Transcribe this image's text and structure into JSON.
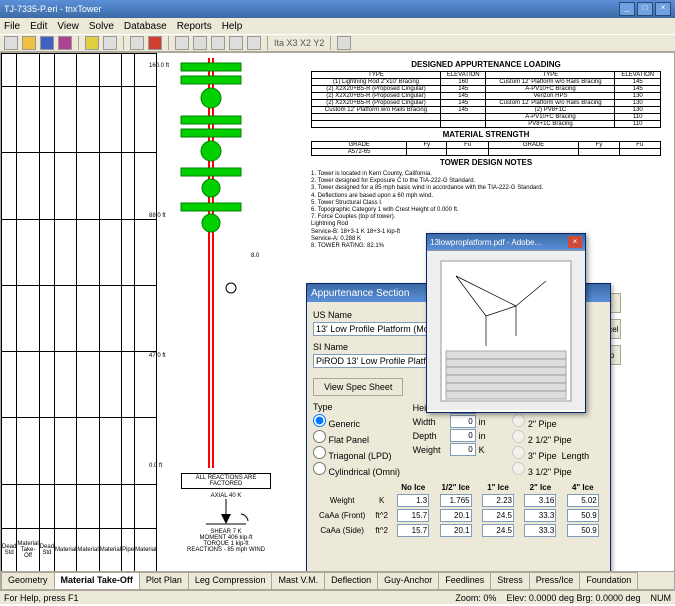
{
  "window": {
    "title": "TJ-7335-P.eri - tnxTower"
  },
  "menu": [
    "File",
    "Edit",
    "View",
    "Solve",
    "Database",
    "Reports",
    "Help"
  ],
  "toolbar_annot": "Ita X3 X2 Y2",
  "drawing_rows": [
    "",
    "",
    "",
    "",
    "",
    "",
    "",
    "",
    "",
    "",
    ""
  ],
  "drawing_footer": [
    "Dead Std",
    "Material Take-Off",
    "Dead Std",
    "Material",
    "Material",
    "Material",
    "Pipe",
    "Material"
  ],
  "dims": {
    "d1": "160.0 ft",
    "d2": "88.0 ft",
    "d3": "47.0 ft",
    "d4": "0.0 ft",
    "rt": "8.0"
  },
  "reactions": {
    "title": "ALL REACTIONS\nARE FACTORED",
    "axial": "AXIAL\n40 K",
    "shear": "SHEAR 7 K",
    "moment": "MOMENT\n406 kip-ft",
    "torque": "TORQUE 1 kip-ft",
    "sub": "REACTIONS - 85 mph WIND"
  },
  "sections": {
    "s1": "DESIGNED APPURTENANCE LOADING",
    "s2": "MATERIAL STRENGTH",
    "s3": "TOWER DESIGN NOTES"
  },
  "appurt_cols": [
    "TYPE",
    "ELEVATION",
    "TYPE",
    "ELEVATION"
  ],
  "appurt_rows": [
    [
      "(1) Lightning Rod 2\"x10' Bracing",
      "160",
      "Custom 12' Platform w/o Rails Bracing",
      "145"
    ],
    [
      "(2) X2X20+B5-R (Proposed Cingular)",
      "145",
      "A-PV10+C Bracing",
      "145"
    ],
    [
      "(2) X2X20+B5-R (Proposed Cingular)",
      "145",
      "Verizon HPS",
      "130"
    ],
    [
      "(2) X2X20+B5-R (Proposed Cingular)",
      "145",
      "Custom 12' Platform w/o Rails Bracing",
      "130"
    ],
    [
      "Custom 12' Platform w/o Rails Bracing",
      "145",
      "(2) PV8+1C",
      "130"
    ],
    [
      "",
      "",
      "A-PV10+C Bracing",
      "110"
    ],
    [
      "",
      "",
      "PV8+1C Bracing",
      "110"
    ]
  ],
  "matcols": [
    "GRADE",
    "Fy",
    "Fu",
    "GRADE",
    "Fy",
    "Fu"
  ],
  "matrow": [
    "A572-65",
    "",
    "",
    "",
    "",
    ""
  ],
  "notes": [
    "1. Tower is located in Kern County, California.",
    "2. Tower designed for Exposure C to the TIA-222-G Standard.",
    "3. Tower designed for a 85 mph basic wind in accordance with the TIA-222-G Standard.",
    "4. Deflections are based upon a 60 mph wind.",
    "5. Tower Structural Class I.",
    "6. Topographic Category 1 with Crest Height of 0.000 ft.",
    "7. Force Couples (top of tower).",
    "   Lightning Rod",
    "   Service-B: 18+3-1 K 18+3-1 kip-ft",
    "   Service-A: 0.288 K",
    "8. TOWER RATING: 82.1%"
  ],
  "dialog": {
    "title": "Appurtenance Section",
    "us_label": "US Name",
    "us_value": "13' Low Profile Platform (Monopole)",
    "si_label": "SI Name",
    "si_value": "PiROD 13' Low Profile Platform (Mo",
    "spec_btn": "View Spec Sheet",
    "type_label": "Type",
    "types": [
      "Generic",
      "Flat Panel",
      "Triagonal (LPD)",
      "Cylindrical (Omni)"
    ],
    "mount_label": "Mount",
    "mounts": [
      "2\" Pipe",
      "2 1/2\" Pipe",
      "3\" Pipe",
      "3 1/2\" Pipe"
    ],
    "length_label": "Length",
    "props": [
      {
        "l": "Height",
        "v": "0",
        "u": "in"
      },
      {
        "l": "Width",
        "v": "0",
        "u": "in"
      },
      {
        "l": "Depth",
        "v": "0",
        "u": "in"
      },
      {
        "l": "Weight",
        "v": "0",
        "u": "K"
      }
    ],
    "ice_cols": [
      "",
      "",
      "No Ice",
      "1/2\" Ice",
      "1\" Ice",
      "2\" Ice",
      "4\" Ice"
    ],
    "ice_rows": [
      [
        "Weight",
        "K",
        "1.3",
        "1.765",
        "2.23",
        "3.16",
        "5.02"
      ],
      [
        "CaAa (Front)",
        "ft^2",
        "15.7",
        "20.1",
        "24.5",
        "33.3",
        "50.9"
      ],
      [
        "CaAa (Side)",
        "ft^2",
        "15.7",
        "20.1",
        "24.5",
        "33.3",
        "50.9"
      ]
    ]
  },
  "sidebtns": [
    "OK",
    "Cancel",
    "Help"
  ],
  "pdf": {
    "title": "13lowproplatform.pdf - Adobe..."
  },
  "tabs": [
    "Geometry",
    "Material Take-Off",
    "Plot Plan",
    "Leg Compression",
    "Mast V.M.",
    "Deflection",
    "Guy-Anchor",
    "Feedlines",
    "Stress",
    "Press/Ice",
    "Foundation"
  ],
  "active_tab": "Material Take-Off",
  "status": {
    "left": "For Help, press F1",
    "zoom": "Zoom: 0%",
    "elev": "Elev: 0.0000 deg Brg: 0.0000 deg",
    "num": "NUM"
  }
}
